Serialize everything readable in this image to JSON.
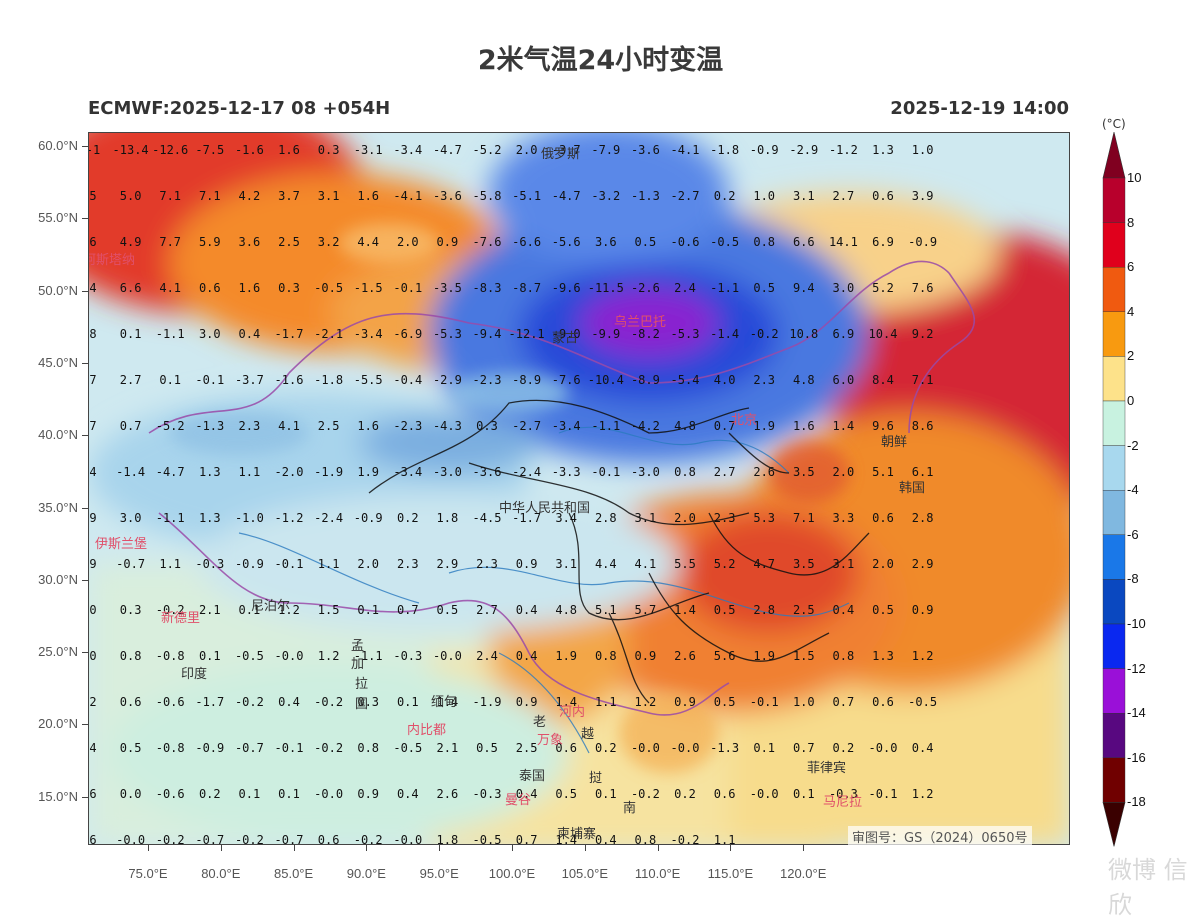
{
  "title": "2米气温24小时变温",
  "init_label": "ECMWF:2025-12-17 08 +054H",
  "valid_label": "2025-12-19 14:00",
  "unit_label": "(°C)",
  "lat_labels": [
    "60.0°N",
    "55.0°N",
    "50.0°N",
    "45.0°N",
    "40.0°N",
    "35.0°N",
    "30.0°N",
    "25.0°N",
    "20.0°N",
    "15.0°N"
  ],
  "lon_labels": [
    "75.0°E",
    "80.0°E",
    "85.0°E",
    "90.0°E",
    "95.0°E",
    "100.0°E",
    "105.0°E",
    "110.0°E",
    "115.0°E",
    "120.0°E"
  ],
  "colorbar": {
    "labels": [
      "10",
      "8",
      "6",
      "4",
      "2",
      "0",
      "-2",
      "-4",
      "-6",
      "-8",
      "-10",
      "-12",
      "-14",
      "-16",
      "-18"
    ],
    "colors": [
      "#b8002c",
      "#e0001c",
      "#f05a10",
      "#f89a10",
      "#fde28a",
      "#c8f2e0",
      "#a8d8ee",
      "#80b8e0",
      "#1a78e8",
      "#0a48c0",
      "#0a28f0",
      "#9a10d8",
      "#580880",
      "#700000"
    ]
  },
  "grid_values": [
    [
      "-1",
      "-13.4",
      "-12.6",
      "-7.5",
      "-1.6",
      "1.6",
      "0.3",
      "-3.1",
      "-3.4",
      "-4.7",
      "-5.2",
      "2.0",
      "-3.7",
      "-7.9",
      "-3.6",
      "-4.1",
      "-1.8",
      "-0.9",
      "-2.9",
      "-1.2",
      "1.3",
      "1.0"
    ],
    [
      "5",
      "5.0",
      "7.1",
      "7.1",
      "4.2",
      "3.7",
      "3.1",
      "1.6",
      "-4.1",
      "-3.6",
      "-5.8",
      "-5.1",
      "-4.7",
      "-3.2",
      "-1.3",
      "-2.7",
      "0.2",
      "1.0",
      "3.1",
      "2.7",
      "0.6",
      "3.9"
    ],
    [
      "6",
      "4.9",
      "7.7",
      "5.9",
      "3.6",
      "2.5",
      "3.2",
      "4.4",
      "2.0",
      "0.9",
      "-7.6",
      "-6.6",
      "-5.6",
      "3.6",
      "0.5",
      "-0.6",
      "-0.5",
      "0.8",
      "6.6",
      "14.1",
      "6.9",
      "-0.9"
    ],
    [
      "4",
      "6.6",
      "4.1",
      "0.6",
      "1.6",
      "0.3",
      "-0.5",
      "-1.5",
      "-0.1",
      "-3.5",
      "-8.3",
      "-8.7",
      "-9.6",
      "-11.5",
      "-2.6",
      "2.4",
      "-1.1",
      "0.5",
      "9.4",
      "3.0",
      "5.2",
      "7.6"
    ],
    [
      "8",
      "0.1",
      "-1.1",
      "3.0",
      "0.4",
      "-1.7",
      "-2.1",
      "-3.4",
      "-6.9",
      "-5.3",
      "-9.4",
      "-12.1",
      "-9.0",
      "-9.9",
      "-8.2",
      "-5.3",
      "-1.4",
      "-0.2",
      "10.8",
      "6.9",
      "10.4",
      "9.2"
    ],
    [
      "7",
      "2.7",
      "0.1",
      "-0.1",
      "-3.7",
      "-1.6",
      "-1.8",
      "-5.5",
      "-0.4",
      "-2.9",
      "-2.3",
      "-8.9",
      "-7.6",
      "-10.4",
      "-8.9",
      "-5.4",
      "4.0",
      "2.3",
      "4.8",
      "6.0",
      "8.4",
      "7.1"
    ],
    [
      "7",
      "0.7",
      "-5.2",
      "-1.3",
      "2.3",
      "4.1",
      "2.5",
      "1.6",
      "-2.3",
      "-4.3",
      "0.3",
      "-2.7",
      "-3.4",
      "-1.1",
      "-4.2",
      "4.8",
      "0.7",
      "1.9",
      "1.6",
      "1.4",
      "9.6",
      "8.6"
    ],
    [
      "4",
      "-1.4",
      "-4.7",
      "1.3",
      "1.1",
      "-2.0",
      "-1.9",
      "1.9",
      "-3.4",
      "-3.0",
      "-3.6",
      "-2.4",
      "-3.3",
      "-0.1",
      "-3.0",
      "0.8",
      "2.7",
      "2.6",
      "3.5",
      "2.0",
      "5.1",
      "6.1"
    ],
    [
      "9",
      "3.0",
      "-1.1",
      "1.3",
      "-1.0",
      "-1.2",
      "-2.4",
      "-0.9",
      "0.2",
      "1.8",
      "-4.5",
      "-1.7",
      "3.4",
      "2.8",
      "3.1",
      "2.0",
      "2.3",
      "5.3",
      "7.1",
      "3.3",
      "0.6",
      "2.8"
    ],
    [
      "9",
      "-0.7",
      "1.1",
      "-0.3",
      "-0.9",
      "-0.1",
      "1.1",
      "2.0",
      "2.3",
      "2.9",
      "2.3",
      "0.9",
      "3.1",
      "4.4",
      "4.1",
      "5.5",
      "5.2",
      "4.7",
      "3.5",
      "3.1",
      "2.0",
      "2.9"
    ],
    [
      "0",
      "0.3",
      "-0.2",
      "2.1",
      "0.1",
      "1.2",
      "1.5",
      "0.1",
      "0.7",
      "0.5",
      "2.7",
      "0.4",
      "4.8",
      "5.1",
      "5.7",
      "1.4",
      "0.5",
      "2.8",
      "2.5",
      "0.4",
      "0.5",
      "0.9"
    ],
    [
      "0",
      "0.8",
      "-0.8",
      "0.1",
      "-0.5",
      "-0.0",
      "1.2",
      "-1.1",
      "-0.3",
      "-0.0",
      "2.4",
      "0.4",
      "1.9",
      "0.8",
      "0.9",
      "2.6",
      "5.6",
      "1.9",
      "1.5",
      "0.8",
      "1.3",
      "1.2"
    ],
    [
      "2",
      "0.6",
      "-0.6",
      "-1.7",
      "-0.2",
      "0.4",
      "-0.2",
      "0.3",
      "0.1",
      "1.4",
      "-1.9",
      "0.9",
      "1.4",
      "1.1",
      "1.2",
      "0.9",
      "0.5",
      "-0.1",
      "1.0",
      "0.7",
      "0.6",
      "-0.5"
    ],
    [
      "4",
      "0.5",
      "-0.8",
      "-0.9",
      "-0.7",
      "-0.1",
      "-0.2",
      "0.8",
      "-0.5",
      "2.1",
      "0.5",
      "2.5",
      "0.6",
      "0.2",
      "-0.0",
      "-0.0",
      "-1.3",
      "0.1",
      "0.7",
      "0.2",
      "-0.0",
      "0.4"
    ],
    [
      "6",
      "0.0",
      "-0.6",
      "0.2",
      "0.1",
      "0.1",
      "-0.0",
      "0.9",
      "0.4",
      "2.6",
      "-0.3",
      "0.4",
      "0.5",
      "0.1",
      "-0.2",
      "0.2",
      "0.6",
      "-0.0",
      "0.1",
      "-0.3",
      "-0.1",
      "1.2"
    ],
    [
      "6",
      "-0.0",
      "-0.2",
      "-0.7",
      "-0.2",
      "-0.7",
      "0.6",
      "-0.2",
      "-0.0",
      "1.8",
      "-0.5",
      "0.7",
      "1.4",
      "0.4",
      "0.8",
      "-0.2",
      "1.1",
      "",
      "",
      "",
      "",
      ""
    ]
  ],
  "places": [
    {
      "name": "俄罗斯",
      "style": "dark"
    },
    {
      "name": "乌兰巴托",
      "style": "pink"
    },
    {
      "name": "蒙古",
      "style": "dark"
    },
    {
      "name": "北京",
      "style": "pink"
    },
    {
      "name": "朝鲜",
      "style": "dark"
    },
    {
      "name": "韩国",
      "style": "dark"
    },
    {
      "name": "中华人民共和国",
      "style": "dark"
    },
    {
      "name": "伊斯兰堡",
      "style": "pink"
    },
    {
      "name": "新德里",
      "style": "pink"
    },
    {
      "name": "尼泊尔",
      "style": "dark"
    },
    {
      "name": "孟",
      "style": "dark"
    },
    {
      "name": "加",
      "style": "dark"
    },
    {
      "name": "拉",
      "style": "dark"
    },
    {
      "name": "国",
      "style": "dark"
    },
    {
      "name": "印度",
      "style": "dark"
    },
    {
      "name": "缅甸",
      "style": "dark"
    },
    {
      "name": "内比都",
      "style": "pink"
    },
    {
      "name": "河内",
      "style": "pink"
    },
    {
      "name": "老",
      "style": "dark"
    },
    {
      "name": "万象",
      "style": "pink"
    },
    {
      "name": "越",
      "style": "dark"
    },
    {
      "name": "泰国",
      "style": "dark"
    },
    {
      "name": "曼谷",
      "style": "pink"
    },
    {
      "name": "挝",
      "style": "dark"
    },
    {
      "name": "南",
      "style": "dark"
    },
    {
      "name": "柬埔寨",
      "style": "dark"
    },
    {
      "name": "菲律宾",
      "style": "dark"
    },
    {
      "name": "马尼拉",
      "style": "pink"
    },
    {
      "name": "阿斯塔纳",
      "style": "pink"
    }
  ],
  "review_number": "审图号：GS（2024）0650号",
  "watermark": "微博 信欣"
}
